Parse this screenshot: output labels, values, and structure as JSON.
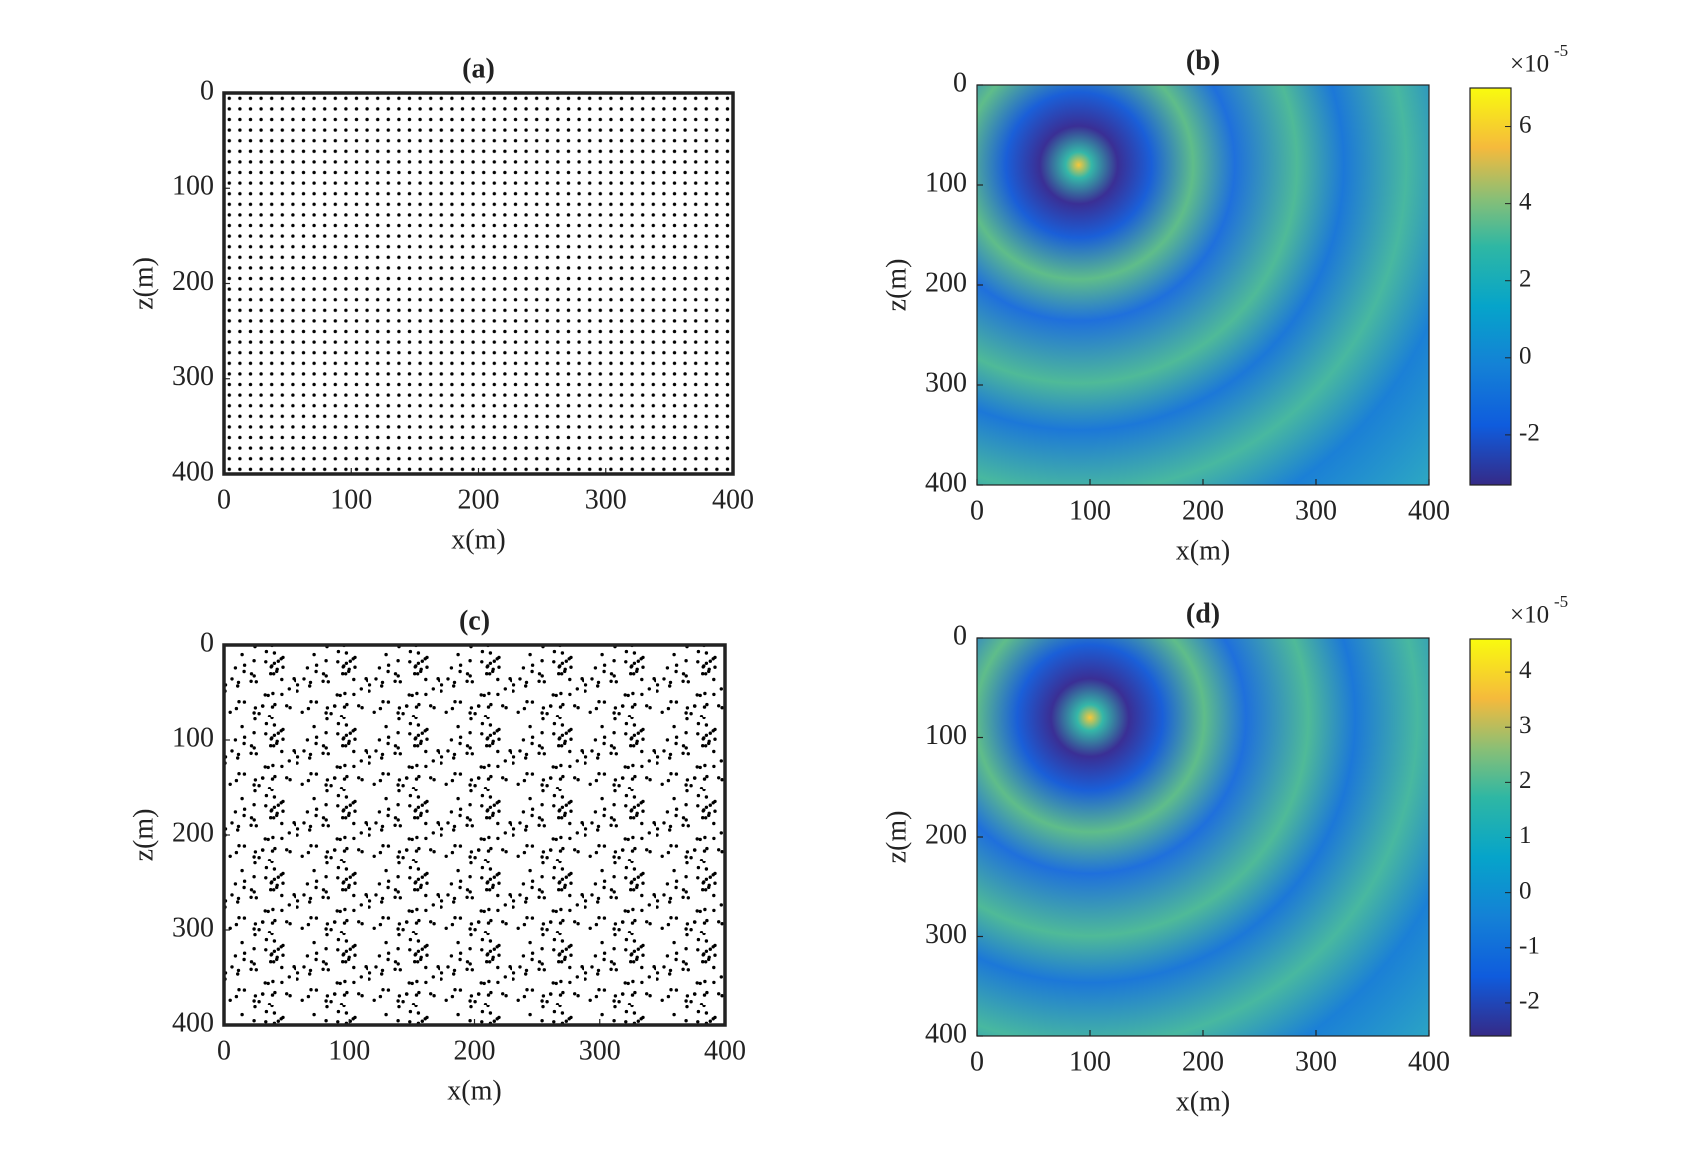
{
  "chart_data": [
    {
      "type": "scatter",
      "title": "(a)",
      "x_label": "x(m)",
      "y_label": "z(m)",
      "xlim": [
        0,
        400
      ],
      "ylim": [
        400,
        0
      ],
      "xticks": [
        0,
        100,
        200,
        300,
        400
      ],
      "yticks": [
        0,
        100,
        200,
        300,
        400
      ],
      "layout": "regular"
    },
    {
      "type": "heatmap",
      "title": "(b)",
      "x_label": "x(m)",
      "y_label": "z(m)",
      "xlim": [
        0,
        400
      ],
      "ylim": [
        400,
        0
      ],
      "xticks": [
        0,
        100,
        200,
        300,
        400
      ],
      "yticks": [
        0,
        100,
        200,
        300,
        400
      ],
      "colorbar": {
        "lim": [
          -3.3,
          7
        ],
        "ticks": [
          -2,
          0,
          2,
          4,
          6
        ],
        "label": "×10",
        "exponent": "-5"
      }
    },
    {
      "type": "scatter",
      "title": "(c)",
      "x_label": "x(m)",
      "y_label": "z(m)",
      "xlim": [
        0,
        400
      ],
      "ylim": [
        400,
        0
      ],
      "xticks": [
        0,
        100,
        200,
        300,
        400
      ],
      "yticks": [
        0,
        100,
        200,
        300,
        400
      ],
      "layout": "random"
    },
    {
      "type": "heatmap",
      "title": "(d)",
      "x_label": "x(m)",
      "y_label": "z(m)",
      "xlim": [
        0,
        400
      ],
      "ylim": [
        400,
        0
      ],
      "xticks": [
        0,
        100,
        200,
        300,
        400
      ],
      "yticks": [
        0,
        100,
        200,
        300,
        400
      ],
      "colorbar": {
        "lim": [
          -2.6,
          4.6
        ],
        "ticks": [
          -2,
          -1,
          0,
          1,
          2,
          3,
          4
        ],
        "label": "×10",
        "exponent": "-5"
      }
    }
  ]
}
